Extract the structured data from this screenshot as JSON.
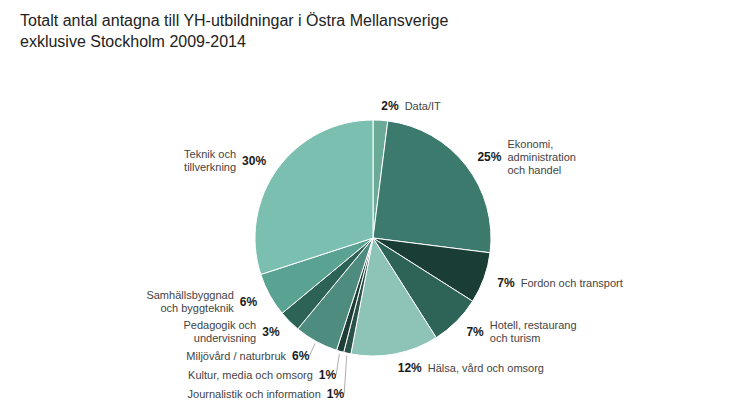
{
  "chart_data": {
    "type": "pie",
    "title": "Totalt antal antagna till YH-utbildningar i Östra Mellansverige\nexklusive Stockholm 2009-2014",
    "categories": [
      "Data/IT",
      "Ekonomi,\nadministration\noch handel",
      "Fordon och transport",
      "Hotell, restaurang\noch turism",
      "Hälsa, vård och omsorg",
      "Journalistik och information",
      "Kultur, media och omsorg",
      "Miljövård / naturbruk",
      "Pedagogik och\nundervisning",
      "Samhällsbyggnad\noch byggteknik",
      "Teknik och\ntillverkning"
    ],
    "values": [
      2,
      25,
      7,
      7,
      12,
      1,
      1,
      6,
      3,
      6,
      30
    ],
    "value_labels": [
      "2%",
      "25%",
      "7%",
      "7%",
      "12%",
      "1%",
      "1%",
      "6%",
      "3%",
      "6%",
      "30%"
    ],
    "colors": [
      "#6aaa96",
      "#3d7a6e",
      "#1a3d35",
      "#2e6457",
      "#8ec4b8",
      "#2a5248",
      "#1e3d36",
      "#4d8c7e",
      "#2d6356",
      "#5aa393",
      "#7bbfb0"
    ],
    "data_labels": true
  }
}
